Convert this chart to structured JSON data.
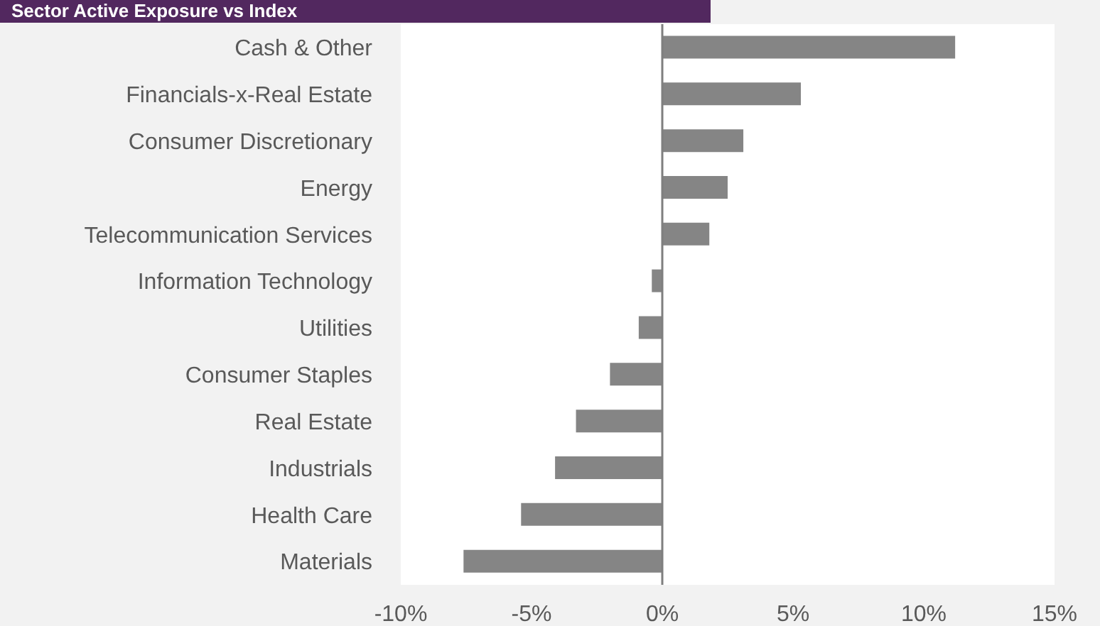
{
  "chart_data": {
    "type": "bar",
    "orientation": "horizontal",
    "title": "Sector Active Exposure vs Index",
    "categories": [
      "Cash & Other",
      "Financials-x-Real Estate",
      "Consumer Discretionary",
      "Energy",
      "Telecommunication Services",
      "Information Technology",
      "Utilities",
      "Consumer Staples",
      "Real Estate",
      "Industrials",
      "Health Care",
      "Materials"
    ],
    "values": [
      11.2,
      5.3,
      3.1,
      2.5,
      1.8,
      -0.4,
      -0.9,
      -2.0,
      -3.3,
      -4.1,
      -5.4,
      -7.6
    ],
    "color": "#858585",
    "xlim": [
      -10,
      15
    ],
    "xticks": [
      {
        "value": -10,
        "label": "-10%"
      },
      {
        "value": -5,
        "label": "-5%"
      },
      {
        "value": 0,
        "label": "0%"
      },
      {
        "value": 5,
        "label": "5%"
      },
      {
        "value": 10,
        "label": "10%"
      },
      {
        "value": 15,
        "label": "15%"
      }
    ],
    "ref_lines": [
      {
        "axis": "x",
        "value": 0,
        "color": "#7f7f7f"
      }
    ],
    "grid": false,
    "legend": false
  }
}
